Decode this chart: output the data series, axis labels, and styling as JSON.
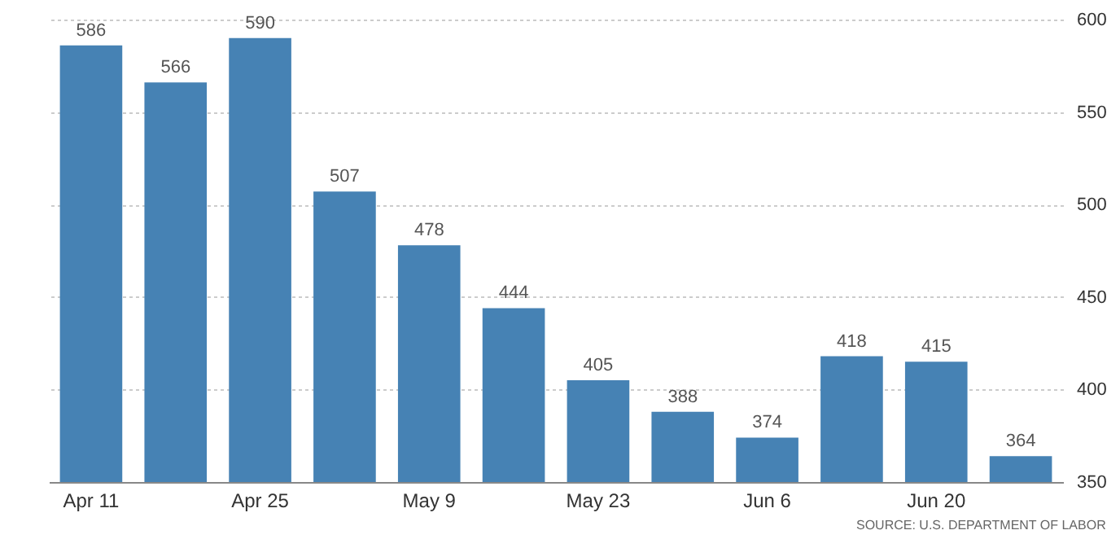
{
  "chart_data": {
    "type": "bar",
    "categories": [
      "Apr 11",
      null,
      "Apr 25",
      null,
      "May 9",
      null,
      "May 23",
      null,
      "Jun 6",
      null,
      "Jun 20",
      null
    ],
    "values": [
      586,
      566,
      590,
      507,
      478,
      444,
      405,
      388,
      374,
      418,
      415,
      364
    ],
    "color": "#4682b4",
    "ylim": [
      350,
      600
    ],
    "yticks": [
      350,
      400,
      450,
      500,
      550,
      600
    ],
    "grid": "y",
    "data_labels": true,
    "annotations": [
      "SOURCE: U.S. DEPARTMENT OF LABOR"
    ]
  }
}
